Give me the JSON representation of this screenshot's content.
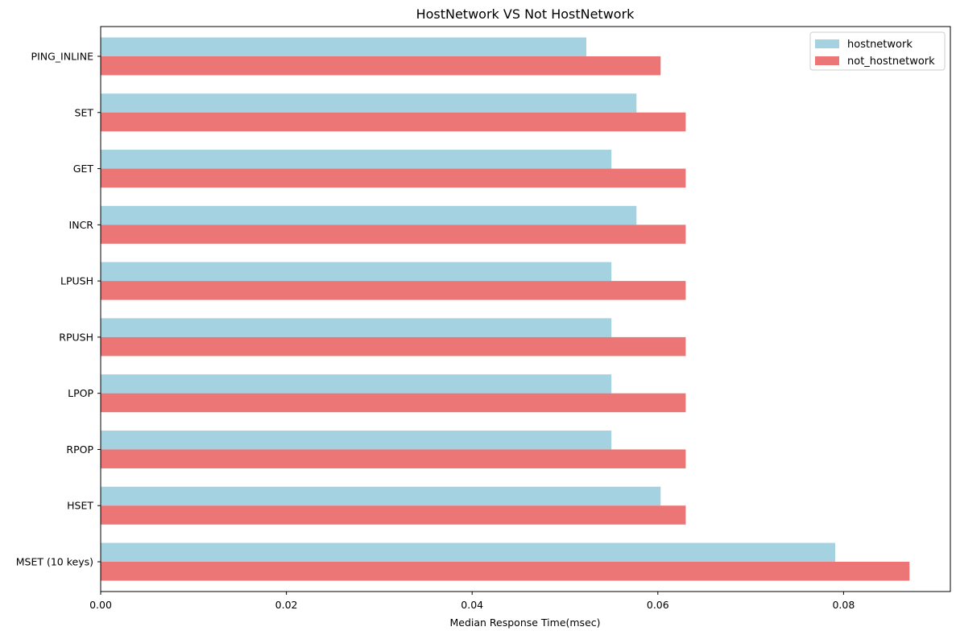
{
  "chart_data": {
    "type": "bar",
    "orientation": "horizontal",
    "title": "HostNetwork VS Not HostNetwork",
    "xlabel": "Median Response Time(msec)",
    "ylabel": "",
    "xlim": [
      0,
      0.0915
    ],
    "xticks": [
      0.0,
      0.02,
      0.04,
      0.06,
      0.08
    ],
    "xtick_labels": [
      "0.00",
      "0.02",
      "0.04",
      "0.06",
      "0.08"
    ],
    "grid": false,
    "legend_position": "top-right",
    "categories": [
      "PING_INLINE",
      "SET",
      "GET",
      "INCR",
      "LPUSH",
      "RPUSH",
      "LPOP",
      "RPOP",
      "HSET",
      "MSET (10 keys)"
    ],
    "series": [
      {
        "name": "hostnetwork",
        "color": "#a4d2e1",
        "values": [
          0.0523,
          0.0577,
          0.055,
          0.0577,
          0.055,
          0.055,
          0.055,
          0.055,
          0.0603,
          0.0791
        ]
      },
      {
        "name": "not_hostnetwork",
        "color": "#ec7575",
        "values": [
          0.0603,
          0.063,
          0.063,
          0.063,
          0.063,
          0.063,
          0.063,
          0.063,
          0.063,
          0.0871
        ]
      }
    ]
  }
}
